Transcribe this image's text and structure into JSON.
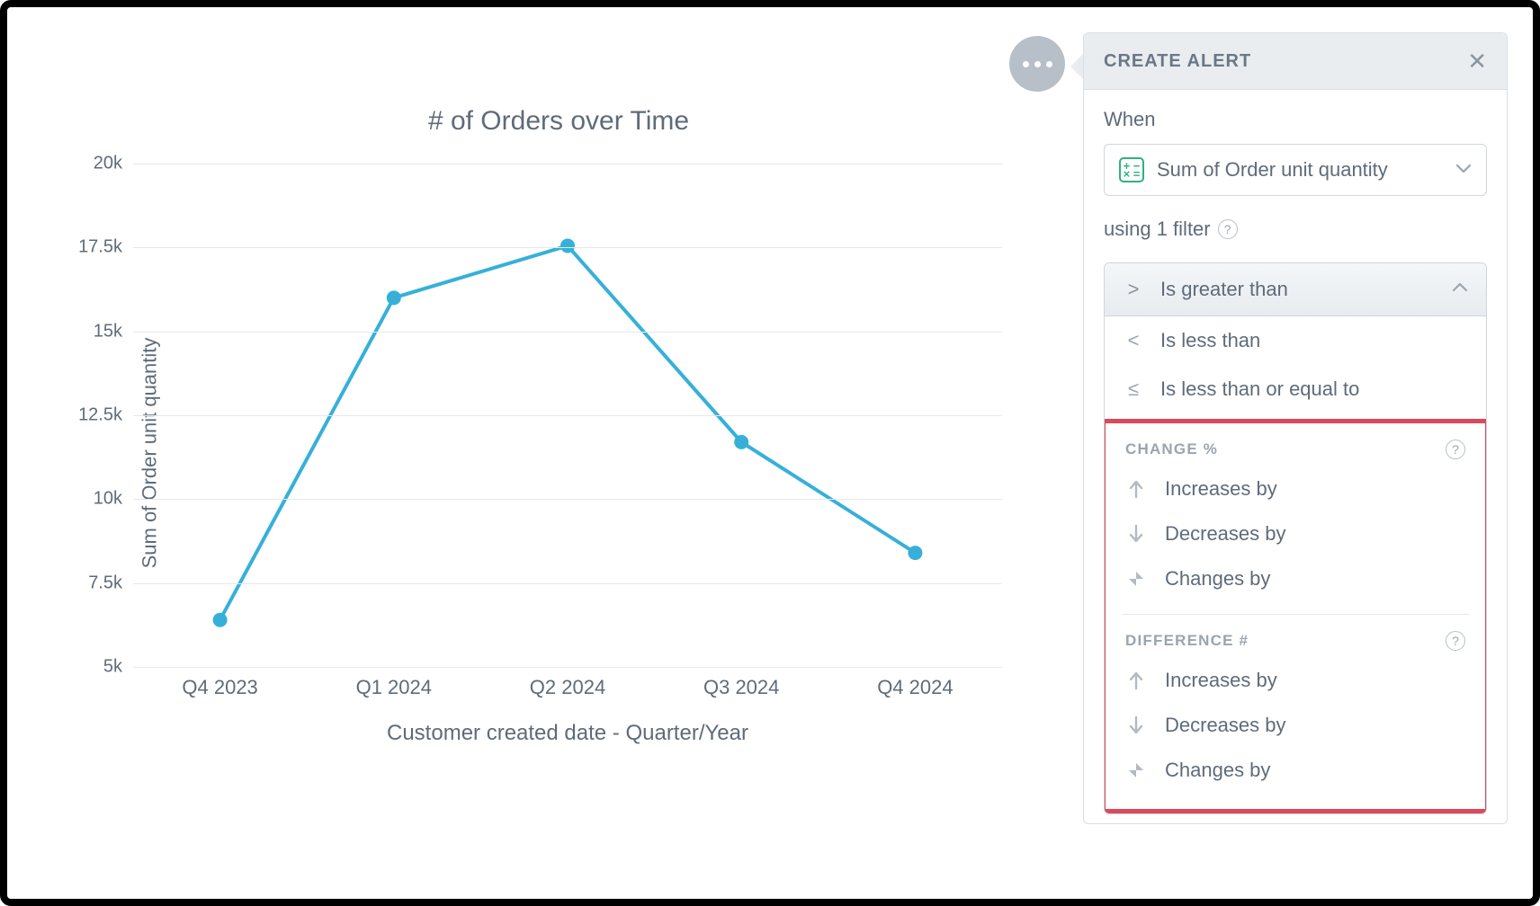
{
  "chart": {
    "title": "# of Orders over Time",
    "ylabel": "Sum of Order unit quantity",
    "xlabel": "Customer created date - Quarter/Year",
    "type": "line",
    "line_color": "#36b0d9",
    "marker_color": "#36b0d9",
    "line_width": 4,
    "marker_radius": 8,
    "grid_color": "#e5e8eb",
    "background_color": "#ffffff",
    "categories": [
      "Q4 2023",
      "Q1 2024",
      "Q2 2024",
      "Q3 2024",
      "Q4 2024"
    ],
    "values": [
      6400,
      16000,
      17550,
      11700,
      8400
    ],
    "ylim": [
      5000,
      20000
    ],
    "ytick_step": 2500,
    "ytick_labels": [
      "5k",
      "7.5k",
      "10k",
      "12.5k",
      "15k",
      "17.5k",
      "20k"
    ]
  },
  "panel": {
    "title": "CREATE ALERT",
    "when_label": "When",
    "metric_selected": "Sum of Order unit quantity",
    "filter_text": "using 1 filter",
    "condition_selected": "Is greater than",
    "condition_symbol": ">",
    "other_conditions": [
      {
        "symbol": "<",
        "label": "Is less than"
      },
      {
        "symbol": "≤",
        "label": "Is less than or equal to"
      }
    ],
    "groups": [
      {
        "title": "CHANGE %",
        "items": [
          {
            "icon": "up",
            "label": "Increases by"
          },
          {
            "icon": "down",
            "label": "Decreases by"
          },
          {
            "icon": "changes",
            "label": "Changes by"
          }
        ]
      },
      {
        "title": "DIFFERENCE #",
        "items": [
          {
            "icon": "up",
            "label": "Increases by"
          },
          {
            "icon": "down",
            "label": "Decreases by"
          },
          {
            "icon": "changes",
            "label": "Changes by"
          }
        ]
      }
    ]
  },
  "colors": {
    "text_muted": "#5f6b7a",
    "border": "#d9dfe4",
    "highlight_border": "#d94a5a",
    "menu_btn": "#b7c0c9"
  }
}
